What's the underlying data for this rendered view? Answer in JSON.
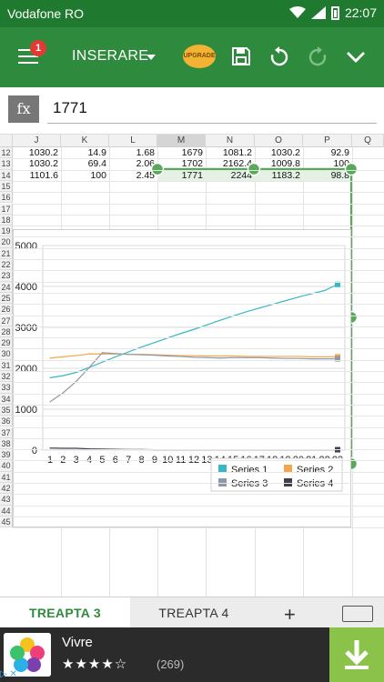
{
  "status_bar": {
    "carrier": "Vodafone RO",
    "time": "22:07"
  },
  "toolbar": {
    "badge": "1",
    "insert_label": "INSERARE",
    "upgrade_label": "UPGRADE"
  },
  "formula_bar": {
    "fx_label": "fx",
    "value": "1771"
  },
  "grid": {
    "columns": [
      "J",
      "K",
      "L",
      "M",
      "N",
      "O",
      "P",
      "Q"
    ],
    "selected_column": "M",
    "rows": [
      "12",
      "13",
      "14",
      "15",
      "16",
      "17",
      "18",
      "19",
      "20",
      "21",
      "22",
      "23",
      "24",
      "25",
      "26",
      "27",
      "28",
      "29",
      "30",
      "31",
      "32",
      "33",
      "34",
      "35",
      "36",
      "37",
      "38",
      "39",
      "40",
      "41",
      "42",
      "43",
      "44",
      "45"
    ],
    "cells": [
      [
        "1030.2",
        "14.9",
        "1.68",
        "1679",
        "1081.2",
        "1030.2",
        "92.9"
      ],
      [
        "1030.2",
        "69.4",
        "2.06",
        "1702",
        "2162.4",
        "1009.8",
        "100"
      ],
      [
        "1101.6",
        "100",
        "2.45",
        "1771",
        "2244",
        "1183.2",
        "98.8"
      ]
    ]
  },
  "chart_data": {
    "type": "line",
    "x": [
      1,
      2,
      3,
      4,
      5,
      6,
      7,
      8,
      9,
      10,
      11,
      12,
      13,
      14,
      15,
      16,
      17,
      18,
      19,
      20,
      21,
      22,
      23
    ],
    "ylim": [
      0,
      5000
    ],
    "yticks": [
      "0",
      "1000",
      "2000",
      "3000",
      "4000",
      "5000"
    ],
    "grid": true,
    "legend_position": "bottom-right",
    "series": [
      {
        "name": "Series 1",
        "color": "#37b7c2",
        "values": [
          1770,
          1820,
          1900,
          2020,
          2150,
          2280,
          2400,
          2520,
          2630,
          2740,
          2850,
          2950,
          3060,
          3170,
          3280,
          3380,
          3470,
          3560,
          3650,
          3740,
          3820,
          3900,
          4050
        ]
      },
      {
        "name": "Series 2",
        "color": "#f4a64b",
        "values": [
          2250,
          2280,
          2310,
          2350,
          2350,
          2350,
          2340,
          2340,
          2330,
          2320,
          2310,
          2310,
          2300,
          2300,
          2300,
          2290,
          2290,
          2290,
          2290,
          2290,
          2280,
          2280,
          2280
        ]
      },
      {
        "name": "Series 3",
        "color": "#8e98a8",
        "values": [
          1180,
          1400,
          1680,
          2020,
          2380,
          2360,
          2340,
          2330,
          2320,
          2300,
          2290,
          2270,
          2260,
          2250,
          2260,
          2260,
          2260,
          2250,
          2240,
          2240,
          2230,
          2230,
          2230
        ]
      },
      {
        "name": "Series 4",
        "color": "#3f3f4e",
        "values": [
          50,
          45,
          45,
          30,
          25,
          20,
          15,
          15,
          10,
          10,
          10,
          10,
          10,
          10,
          10,
          10,
          10,
          10,
          10,
          10,
          10,
          10,
          10
        ]
      }
    ]
  },
  "tabs": [
    {
      "label": "TREAPTA 3",
      "active": true
    },
    {
      "label": "TREAPTA 4",
      "active": false
    }
  ],
  "ad": {
    "app_name": "Vivre",
    "stars": "★★★★☆",
    "rating_count": "(269)"
  },
  "colors": {
    "status_bar": "#1f7a30",
    "toolbar": "#2e8b3d",
    "accent": "#2e8b3d",
    "selection": "#5aa85a"
  }
}
